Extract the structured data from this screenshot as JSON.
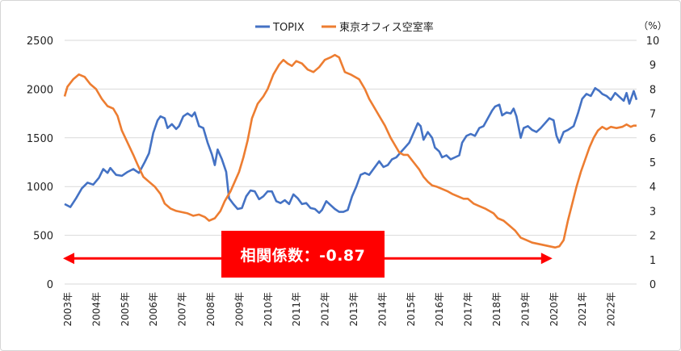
{
  "chart_data": {
    "type": "line",
    "title": "",
    "legend": {
      "placement": "top-center",
      "entries": [
        "TOPIX",
        "東京オフィス空室率"
      ]
    },
    "left_axis": {
      "ylim": [
        0,
        2500
      ],
      "ticks": [
        "0",
        "500",
        "1000",
        "1500",
        "2000",
        "2500"
      ]
    },
    "right_axis": {
      "ylim": [
        0,
        10
      ],
      "unit_label": "（%）",
      "ticks": [
        "0",
        "1",
        "2",
        "3",
        "4",
        "5",
        "6",
        "7",
        "8",
        "9",
        "10"
      ]
    },
    "x_labels": [
      "2003年",
      "2004年",
      "2005年",
      "2006年",
      "2007年",
      "2008年",
      "2009年",
      "2010年",
      "2011年",
      "2012年",
      "2013年",
      "2014年",
      "2015年",
      "2016年",
      "2017年",
      "2018年",
      "2019年",
      "2020年",
      "2021年",
      "2022年"
    ],
    "x_range": [
      2003.0,
      2023.0
    ],
    "grid": "horizontal",
    "series": [
      {
        "name": "TOPIX",
        "axis": "left",
        "color": "#4472c4",
        "points": [
          [
            2003.0,
            820
          ],
          [
            2003.2,
            790
          ],
          [
            2003.4,
            880
          ],
          [
            2003.6,
            980
          ],
          [
            2003.8,
            1040
          ],
          [
            2004.0,
            1020
          ],
          [
            2004.2,
            1090
          ],
          [
            2004.35,
            1180
          ],
          [
            2004.5,
            1140
          ],
          [
            2004.6,
            1190
          ],
          [
            2004.8,
            1120
          ],
          [
            2005.0,
            1110
          ],
          [
            2005.2,
            1150
          ],
          [
            2005.4,
            1180
          ],
          [
            2005.6,
            1140
          ],
          [
            2005.8,
            1250
          ],
          [
            2005.95,
            1340
          ],
          [
            2006.1,
            1550
          ],
          [
            2006.25,
            1680
          ],
          [
            2006.35,
            1720
          ],
          [
            2006.5,
            1700
          ],
          [
            2006.6,
            1600
          ],
          [
            2006.75,
            1640
          ],
          [
            2006.9,
            1590
          ],
          [
            2007.0,
            1620
          ],
          [
            2007.15,
            1720
          ],
          [
            2007.3,
            1750
          ],
          [
            2007.45,
            1720
          ],
          [
            2007.55,
            1760
          ],
          [
            2007.7,
            1620
          ],
          [
            2007.85,
            1600
          ],
          [
            2008.0,
            1450
          ],
          [
            2008.15,
            1330
          ],
          [
            2008.25,
            1220
          ],
          [
            2008.35,
            1380
          ],
          [
            2008.5,
            1280
          ],
          [
            2008.65,
            1150
          ],
          [
            2008.75,
            880
          ],
          [
            2008.9,
            820
          ],
          [
            2009.05,
            770
          ],
          [
            2009.2,
            780
          ],
          [
            2009.35,
            900
          ],
          [
            2009.5,
            960
          ],
          [
            2009.65,
            950
          ],
          [
            2009.8,
            870
          ],
          [
            2009.95,
            900
          ],
          [
            2010.1,
            950
          ],
          [
            2010.25,
            950
          ],
          [
            2010.4,
            850
          ],
          [
            2010.55,
            830
          ],
          [
            2010.7,
            860
          ],
          [
            2010.85,
            820
          ],
          [
            2011.0,
            920
          ],
          [
            2011.15,
            880
          ],
          [
            2011.3,
            820
          ],
          [
            2011.45,
            830
          ],
          [
            2011.6,
            780
          ],
          [
            2011.75,
            770
          ],
          [
            2011.9,
            730
          ],
          [
            2012.0,
            760
          ],
          [
            2012.15,
            850
          ],
          [
            2012.3,
            810
          ],
          [
            2012.45,
            770
          ],
          [
            2012.6,
            740
          ],
          [
            2012.75,
            740
          ],
          [
            2012.9,
            760
          ],
          [
            2013.05,
            900
          ],
          [
            2013.2,
            1000
          ],
          [
            2013.35,
            1120
          ],
          [
            2013.5,
            1140
          ],
          [
            2013.65,
            1120
          ],
          [
            2013.85,
            1200
          ],
          [
            2014.0,
            1260
          ],
          [
            2014.15,
            1200
          ],
          [
            2014.3,
            1220
          ],
          [
            2014.45,
            1280
          ],
          [
            2014.6,
            1300
          ],
          [
            2014.75,
            1350
          ],
          [
            2014.9,
            1400
          ],
          [
            2015.05,
            1450
          ],
          [
            2015.2,
            1550
          ],
          [
            2015.35,
            1650
          ],
          [
            2015.45,
            1620
          ],
          [
            2015.55,
            1480
          ],
          [
            2015.7,
            1560
          ],
          [
            2015.85,
            1500
          ],
          [
            2015.95,
            1400
          ],
          [
            2016.1,
            1360
          ],
          [
            2016.2,
            1300
          ],
          [
            2016.35,
            1320
          ],
          [
            2016.5,
            1280
          ],
          [
            2016.65,
            1300
          ],
          [
            2016.8,
            1320
          ],
          [
            2016.9,
            1450
          ],
          [
            2017.05,
            1520
          ],
          [
            2017.2,
            1540
          ],
          [
            2017.35,
            1520
          ],
          [
            2017.5,
            1600
          ],
          [
            2017.65,
            1620
          ],
          [
            2017.8,
            1700
          ],
          [
            2017.95,
            1780
          ],
          [
            2018.05,
            1820
          ],
          [
            2018.2,
            1840
          ],
          [
            2018.3,
            1730
          ],
          [
            2018.45,
            1760
          ],
          [
            2018.6,
            1750
          ],
          [
            2018.7,
            1800
          ],
          [
            2018.8,
            1720
          ],
          [
            2018.95,
            1500
          ],
          [
            2019.05,
            1600
          ],
          [
            2019.2,
            1620
          ],
          [
            2019.35,
            1580
          ],
          [
            2019.5,
            1560
          ],
          [
            2019.65,
            1600
          ],
          [
            2019.8,
            1650
          ],
          [
            2019.95,
            1700
          ],
          [
            2020.1,
            1680
          ],
          [
            2020.2,
            1520
          ],
          [
            2020.3,
            1450
          ],
          [
            2020.45,
            1560
          ],
          [
            2020.6,
            1580
          ],
          [
            2020.8,
            1620
          ],
          [
            2020.95,
            1750
          ],
          [
            2021.1,
            1900
          ],
          [
            2021.25,
            1950
          ],
          [
            2021.4,
            1930
          ],
          [
            2021.55,
            2010
          ],
          [
            2021.7,
            1980
          ],
          [
            2021.8,
            1950
          ],
          [
            2021.95,
            1930
          ],
          [
            2022.1,
            1890
          ],
          [
            2022.25,
            1960
          ],
          [
            2022.4,
            1920
          ],
          [
            2022.55,
            1880
          ],
          [
            2022.65,
            1960
          ],
          [
            2022.75,
            1850
          ],
          [
            2022.9,
            1980
          ],
          [
            2023.0,
            1890
          ]
        ]
      },
      {
        "name": "東京オフィス空室率",
        "axis": "right",
        "color": "#ed7d31",
        "points": [
          [
            2003.0,
            7.7
          ],
          [
            2003.1,
            8.1
          ],
          [
            2003.3,
            8.4
          ],
          [
            2003.5,
            8.6
          ],
          [
            2003.7,
            8.5
          ],
          [
            2003.9,
            8.2
          ],
          [
            2004.1,
            8.0
          ],
          [
            2004.3,
            7.6
          ],
          [
            2004.5,
            7.3
          ],
          [
            2004.7,
            7.2
          ],
          [
            2004.85,
            6.9
          ],
          [
            2005.0,
            6.3
          ],
          [
            2005.2,
            5.8
          ],
          [
            2005.4,
            5.3
          ],
          [
            2005.55,
            4.9
          ],
          [
            2005.75,
            4.4
          ],
          [
            2005.95,
            4.2
          ],
          [
            2006.15,
            4.0
          ],
          [
            2006.35,
            3.7
          ],
          [
            2006.5,
            3.3
          ],
          [
            2006.7,
            3.1
          ],
          [
            2006.9,
            3.0
          ],
          [
            2007.1,
            2.95
          ],
          [
            2007.3,
            2.9
          ],
          [
            2007.5,
            2.8
          ],
          [
            2007.7,
            2.85
          ],
          [
            2007.9,
            2.75
          ],
          [
            2008.05,
            2.6
          ],
          [
            2008.25,
            2.7
          ],
          [
            2008.45,
            3.0
          ],
          [
            2008.6,
            3.4
          ],
          [
            2008.8,
            3.8
          ],
          [
            2008.95,
            4.2
          ],
          [
            2009.1,
            4.6
          ],
          [
            2009.25,
            5.2
          ],
          [
            2009.4,
            5.9
          ],
          [
            2009.55,
            6.8
          ],
          [
            2009.75,
            7.4
          ],
          [
            2009.95,
            7.7
          ],
          [
            2010.1,
            8.0
          ],
          [
            2010.3,
            8.6
          ],
          [
            2010.5,
            9.0
          ],
          [
            2010.65,
            9.2
          ],
          [
            2010.8,
            9.05
          ],
          [
            2010.95,
            8.95
          ],
          [
            2011.1,
            9.15
          ],
          [
            2011.3,
            9.05
          ],
          [
            2011.5,
            8.8
          ],
          [
            2011.7,
            8.7
          ],
          [
            2011.9,
            8.9
          ],
          [
            2012.1,
            9.2
          ],
          [
            2012.3,
            9.3
          ],
          [
            2012.45,
            9.4
          ],
          [
            2012.6,
            9.3
          ],
          [
            2012.8,
            8.7
          ],
          [
            2013.0,
            8.6
          ],
          [
            2013.15,
            8.5
          ],
          [
            2013.3,
            8.4
          ],
          [
            2013.5,
            8.0
          ],
          [
            2013.65,
            7.6
          ],
          [
            2013.8,
            7.3
          ],
          [
            2014.0,
            6.9
          ],
          [
            2014.2,
            6.5
          ],
          [
            2014.4,
            6.0
          ],
          [
            2014.55,
            5.7
          ],
          [
            2014.7,
            5.4
          ],
          [
            2014.85,
            5.3
          ],
          [
            2015.0,
            5.3
          ],
          [
            2015.2,
            5.0
          ],
          [
            2015.4,
            4.7
          ],
          [
            2015.55,
            4.4
          ],
          [
            2015.7,
            4.2
          ],
          [
            2015.85,
            4.05
          ],
          [
            2016.0,
            4.0
          ],
          [
            2016.2,
            3.9
          ],
          [
            2016.4,
            3.8
          ],
          [
            2016.55,
            3.7
          ],
          [
            2016.75,
            3.6
          ],
          [
            2016.95,
            3.5
          ],
          [
            2017.1,
            3.5
          ],
          [
            2017.3,
            3.3
          ],
          [
            2017.5,
            3.2
          ],
          [
            2017.7,
            3.1
          ],
          [
            2017.85,
            3.0
          ],
          [
            2018.0,
            2.9
          ],
          [
            2018.15,
            2.7
          ],
          [
            2018.35,
            2.6
          ],
          [
            2018.55,
            2.4
          ],
          [
            2018.75,
            2.2
          ],
          [
            2018.95,
            1.9
          ],
          [
            2019.15,
            1.8
          ],
          [
            2019.35,
            1.7
          ],
          [
            2019.55,
            1.65
          ],
          [
            2019.75,
            1.6
          ],
          [
            2019.95,
            1.55
          ],
          [
            2020.15,
            1.5
          ],
          [
            2020.3,
            1.55
          ],
          [
            2020.45,
            1.8
          ],
          [
            2020.6,
            2.6
          ],
          [
            2020.75,
            3.3
          ],
          [
            2020.9,
            4.0
          ],
          [
            2021.05,
            4.6
          ],
          [
            2021.2,
            5.1
          ],
          [
            2021.35,
            5.6
          ],
          [
            2021.5,
            6.0
          ],
          [
            2021.65,
            6.3
          ],
          [
            2021.8,
            6.45
          ],
          [
            2021.95,
            6.35
          ],
          [
            2022.1,
            6.45
          ],
          [
            2022.3,
            6.4
          ],
          [
            2022.5,
            6.45
          ],
          [
            2022.65,
            6.55
          ],
          [
            2022.8,
            6.45
          ],
          [
            2022.9,
            6.5
          ],
          [
            2023.0,
            6.5
          ]
        ]
      }
    ],
    "annotation": {
      "label": "相関係数：-0.87",
      "arrow_color": "#ff0000",
      "box_color": "#ff0000",
      "text_color": "#ffffff",
      "arrow_span_x": [
        2003.0,
        2020.0
      ],
      "arrow_level_right_axis": 1.05
    }
  }
}
